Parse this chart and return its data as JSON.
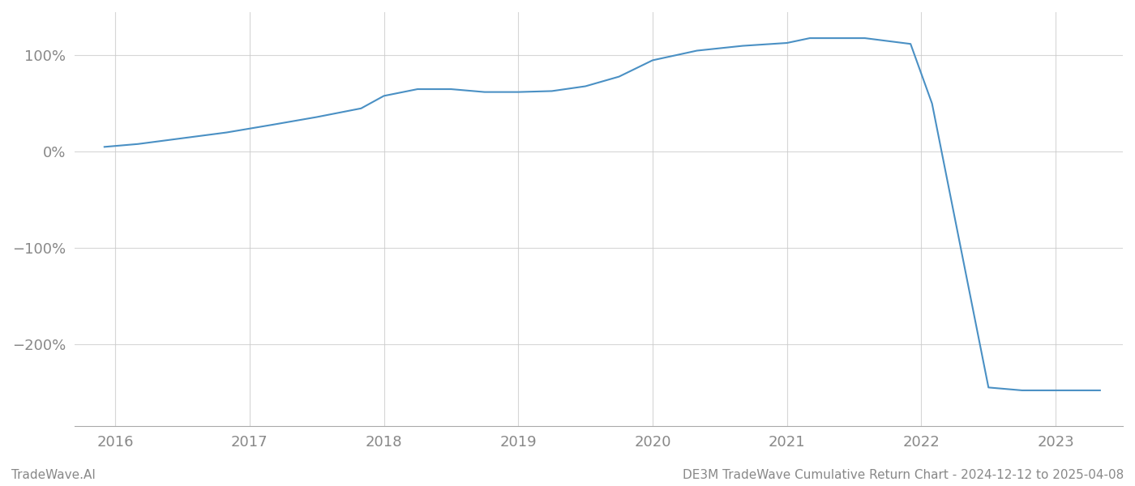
{
  "x_values": [
    2015.92,
    2016.17,
    2016.5,
    2016.83,
    2017.17,
    2017.5,
    2017.83,
    2018.0,
    2018.25,
    2018.5,
    2018.75,
    2019.0,
    2019.25,
    2019.5,
    2019.75,
    2020.0,
    2020.33,
    2020.67,
    2021.0,
    2021.17,
    2021.58,
    2021.92,
    2022.08,
    2022.5,
    2022.75,
    2023.0,
    2023.33
  ],
  "y_values": [
    5,
    8,
    14,
    20,
    28,
    36,
    45,
    58,
    65,
    65,
    62,
    62,
    63,
    68,
    78,
    95,
    105,
    110,
    113,
    118,
    118,
    112,
    50,
    -245,
    -248,
    -248,
    -248
  ],
  "line_color": "#4a90c4",
  "line_width": 1.5,
  "xlim": [
    2015.7,
    2023.5
  ],
  "ylim": [
    -285,
    145
  ],
  "yticks": [
    100,
    0,
    -100,
    -200
  ],
  "ytick_labels": [
    "100%",
    "0%",
    "−100%",
    "−200%"
  ],
  "xticks": [
    2016,
    2017,
    2018,
    2019,
    2020,
    2021,
    2022,
    2023
  ],
  "xtick_labels": [
    "2016",
    "2017",
    "2018",
    "2019",
    "2020",
    "2021",
    "2022",
    "2023"
  ],
  "grid_color": "#cccccc",
  "grid_alpha": 0.8,
  "background_color": "#ffffff",
  "footer_left": "TradeWave.AI",
  "footer_right": "DE3M TradeWave Cumulative Return Chart - 2024-12-12 to 2025-04-08",
  "footer_color": "#888888",
  "footer_fontsize": 11,
  "tick_color": "#888888",
  "tick_fontsize": 13
}
